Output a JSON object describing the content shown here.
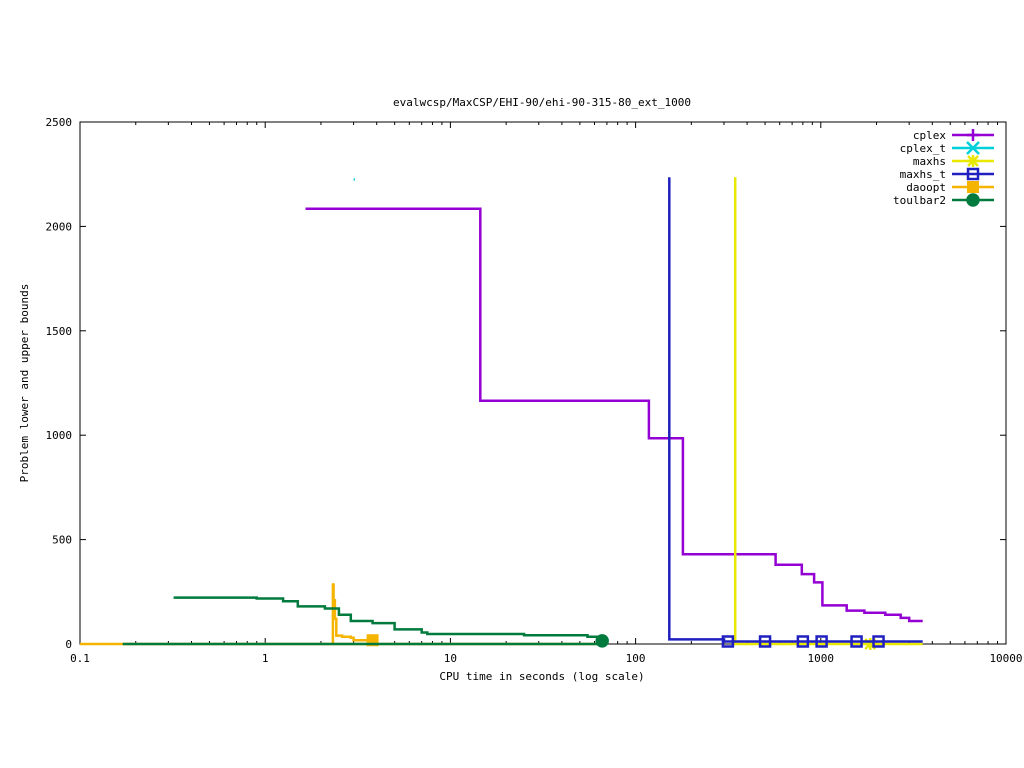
{
  "chart_data": {
    "type": "line",
    "title": "evalwcsp/MaxCSP/EHI-90/ehi-90-315-80_ext_1000",
    "xlabel": "CPU time in seconds (log scale)",
    "ylabel": "Problem lower and upper bounds",
    "xscale": "log",
    "xlim": [
      0.1,
      10000
    ],
    "ylim": [
      0,
      2500
    ],
    "xticks": [
      {
        "value": 0.1,
        "label": "0.1"
      },
      {
        "value": 1,
        "label": "1"
      },
      {
        "value": 10,
        "label": "10"
      },
      {
        "value": 100,
        "label": "100"
      },
      {
        "value": 1000,
        "label": "1000"
      },
      {
        "value": 10000,
        "label": "10000"
      }
    ],
    "yticks": [
      {
        "value": 0,
        "label": "0"
      },
      {
        "value": 500,
        "label": "500"
      },
      {
        "value": 1000,
        "label": "1000"
      },
      {
        "value": 1500,
        "label": "1500"
      },
      {
        "value": 2000,
        "label": "2000"
      },
      {
        "value": 2500,
        "label": "2500"
      }
    ],
    "grid": false,
    "legend_position": "top-right",
    "series": [
      {
        "name": "cplex",
        "color": "#9400d3",
        "marker": "plus",
        "points": [
          [
            1.65,
            2085
          ],
          [
            14.5,
            2085
          ],
          [
            14.5,
            1165
          ],
          [
            118,
            1165
          ],
          [
            118,
            985
          ],
          [
            180,
            985
          ],
          [
            180,
            430
          ],
          [
            570,
            430
          ],
          [
            570,
            380
          ],
          [
            790,
            380
          ],
          [
            790,
            335
          ],
          [
            920,
            335
          ],
          [
            920,
            295
          ],
          [
            1020,
            295
          ],
          [
            1020,
            185
          ],
          [
            1380,
            185
          ],
          [
            1380,
            160
          ],
          [
            1720,
            160
          ],
          [
            1720,
            150
          ],
          [
            2230,
            150
          ],
          [
            2230,
            140
          ],
          [
            2700,
            140
          ],
          [
            2700,
            125
          ],
          [
            3000,
            125
          ],
          [
            3000,
            110
          ],
          [
            3550,
            110
          ]
        ],
        "markers": []
      },
      {
        "name": "cplex_t",
        "color": "#00d0d8",
        "marker": "x",
        "points": [
          [
            3.0,
            2225
          ],
          [
            3.05,
            2225
          ]
        ],
        "markers": []
      },
      {
        "name": "maxhs",
        "color": "#e8e800",
        "marker": "star",
        "points": [
          [
            345,
            2235
          ],
          [
            345,
            0
          ],
          [
            3550,
            0
          ]
        ],
        "markers": [
          [
            1850,
            0
          ]
        ]
      },
      {
        "name": "maxhs_t",
        "color": "#2020c0",
        "marker": "square",
        "points": [
          [
            152,
            2235
          ],
          [
            152,
            22
          ],
          [
            300,
            22
          ],
          [
            300,
            12
          ],
          [
            3550,
            12
          ]
        ],
        "markers": [
          [
            315,
            12
          ],
          [
            500,
            12
          ],
          [
            800,
            12
          ],
          [
            1010,
            12
          ],
          [
            1560,
            12
          ],
          [
            2050,
            12
          ]
        ]
      },
      {
        "name": "daoopt",
        "color": "#f5b400",
        "marker": "filled-square",
        "points": [
          [
            0.1,
            0
          ],
          [
            65,
            0
          ],
          [
            65,
            0
          ],
          [
            2.32,
            0
          ],
          [
            2.32,
            285
          ],
          [
            2.34,
            285
          ],
          [
            2.34,
            210
          ],
          [
            2.38,
            210
          ],
          [
            2.38,
            120
          ],
          [
            2.42,
            120
          ],
          [
            2.42,
            40
          ],
          [
            2.6,
            40
          ],
          [
            2.6,
            35
          ],
          [
            2.9,
            35
          ],
          [
            2.9,
            30
          ],
          [
            3.0,
            30
          ],
          [
            3.0,
            18
          ],
          [
            3.8,
            18
          ]
        ],
        "markers": [
          [
            3.8,
            18
          ]
        ]
      },
      {
        "name": "toulbar2",
        "color": "#007a3d",
        "marker": "filled-circle",
        "points": [
          [
            0.32,
            222
          ],
          [
            0.9,
            222
          ],
          [
            0.9,
            218
          ],
          [
            1.25,
            218
          ],
          [
            1.25,
            205
          ],
          [
            1.5,
            205
          ],
          [
            1.5,
            180
          ],
          [
            2.1,
            180
          ],
          [
            2.1,
            170
          ],
          [
            2.5,
            170
          ],
          [
            2.5,
            140
          ],
          [
            2.9,
            140
          ],
          [
            2.9,
            110
          ],
          [
            3.8,
            110
          ],
          [
            3.8,
            100
          ],
          [
            5,
            100
          ],
          [
            5,
            70
          ],
          [
            7,
            70
          ],
          [
            7,
            55
          ],
          [
            7.5,
            55
          ],
          [
            7.5,
            48
          ],
          [
            25,
            48
          ],
          [
            25,
            42
          ],
          [
            55,
            42
          ],
          [
            55,
            35
          ],
          [
            63,
            35
          ],
          [
            63,
            15
          ],
          [
            65,
            15
          ]
        ],
        "lower": [
          [
            0.17,
            0
          ],
          [
            65,
            0
          ]
        ],
        "markers": [
          [
            66,
            15
          ]
        ]
      }
    ]
  }
}
